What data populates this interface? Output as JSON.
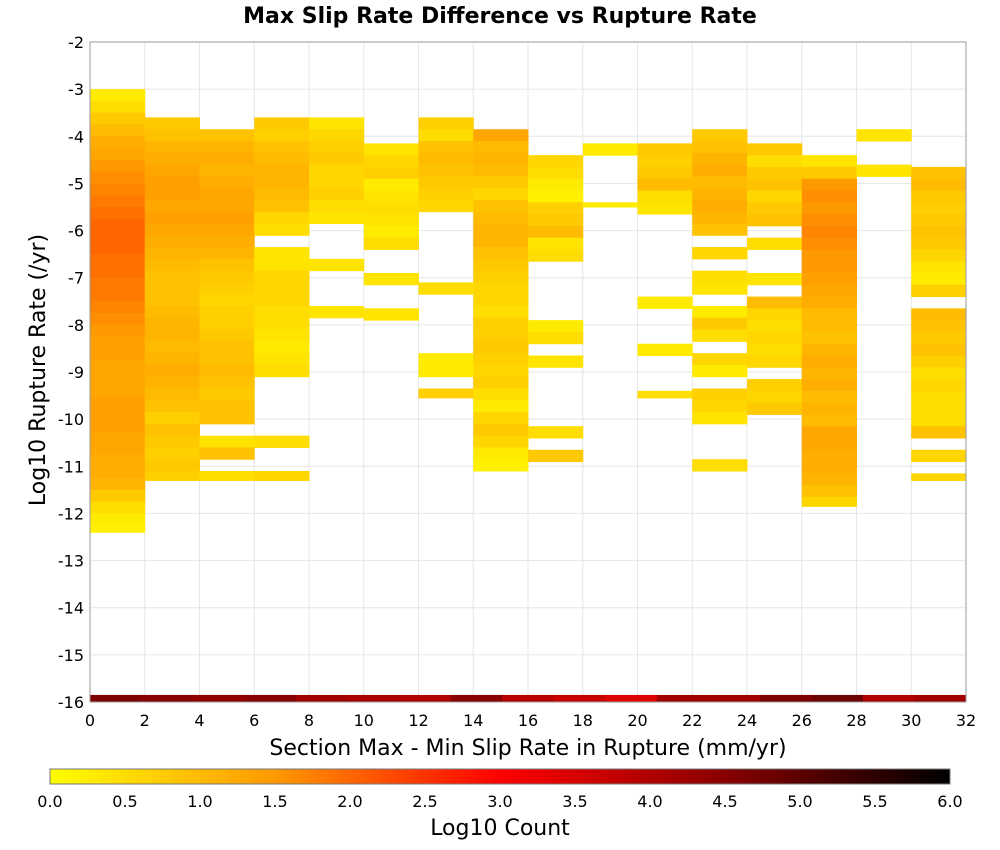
{
  "chart_data": {
    "type": "heatmap",
    "title": "Max Slip Rate Difference vs Rupture Rate",
    "xlabel": "Section Max - Min Slip Rate in Rupture (mm/yr)",
    "ylabel": "Log10 Rupture Rate (/yr)",
    "xlim": [
      0,
      32
    ],
    "ylim": [
      -16,
      -2
    ],
    "x_ticks": [
      "0",
      "2",
      "4",
      "6",
      "8",
      "10",
      "12",
      "14",
      "16",
      "18",
      "20",
      "22",
      "24",
      "26",
      "28",
      "30",
      "32"
    ],
    "y_ticks": [
      "-2",
      "-3",
      "-4",
      "-5",
      "-6",
      "-7",
      "-8",
      "-9",
      "-10",
      "-11",
      "-12",
      "-13",
      "-14",
      "-15",
      "-16"
    ],
    "grid": true,
    "x_bin_width": 2,
    "y_bin_height": 0.25,
    "colorbar": {
      "label": "Log10 Count",
      "min": 0,
      "max": 6,
      "ticks": [
        "0.0",
        "0.5",
        "1.0",
        "1.5",
        "2.0",
        "2.5",
        "3.0",
        "3.5",
        "4.0",
        "4.5",
        "5.0",
        "5.5",
        "6.0"
      ],
      "stops": [
        {
          "v": 0.0,
          "c": "#ffff00"
        },
        {
          "v": 1.5,
          "c": "#ff9900"
        },
        {
          "v": 3.0,
          "c": "#ff0000"
        },
        {
          "v": 4.5,
          "c": "#880000"
        },
        {
          "v": 6.0,
          "c": "#000000"
        }
      ]
    },
    "marginal_row": {
      "y_range": [
        -16,
        -15.85
      ],
      "values": [
        4.6,
        4.5,
        4.4,
        4.5,
        4.2,
        4.1,
        4.0,
        4.5,
        3.9,
        3.7,
        3.4,
        4.2,
        4.2,
        4.6,
        4.8,
        4.0,
        4.2
      ]
    },
    "series": [
      {
        "x0": 0,
        "x1": 2,
        "y0": -12.4,
        "y1": -3.0,
        "values": [
          0.3,
          0.5,
          0.8,
          1.0,
          1.2,
          1.3,
          1.5,
          1.6,
          1.7,
          1.8,
          1.9,
          2.0,
          2.0,
          2.0,
          1.9,
          1.9,
          1.8,
          1.8,
          1.7,
          1.6,
          1.5,
          1.4,
          1.4,
          1.3,
          1.3,
          1.3,
          1.4,
          1.4,
          1.4,
          1.3,
          1.3,
          1.2,
          1.2,
          1.1,
          0.8,
          0.5,
          0.3,
          0.2
        ]
      },
      {
        "x0": 2,
        "x1": 4,
        "y0": -11.3,
        "y1": -3.6,
        "values": [
          0.8,
          0.9,
          1.1,
          1.2,
          1.3,
          1.4,
          1.4,
          1.3,
          1.4,
          1.3,
          1.2,
          1.1,
          1.0,
          0.9,
          0.9,
          0.9,
          1.0,
          1.1,
          1.1,
          1.0,
          1.1,
          1.2,
          1.1,
          1.0,
          0.9,
          0.7,
          0.9,
          0.8,
          0.7,
          0.8,
          0.7
        ]
      },
      {
        "x0": 4,
        "x1": 6,
        "y0": -11.3,
        "y1": -3.85,
        "values": [
          0.9,
          1.1,
          1.2,
          1.1,
          1.2,
          1.3,
          1.3,
          1.4,
          1.3,
          1.2,
          1.1,
          0.9,
          0.8,
          0.7,
          0.6,
          0.7,
          0.7,
          0.8,
          0.9,
          0.9,
          1.0,
          0.9,
          0.8,
          0.9,
          0.9,
          null,
          0.4,
          0.9,
          null,
          0.5
        ]
      },
      {
        "x0": 6,
        "x1": 8,
        "y0": -11.3,
        "y1": -3.6,
        "values": [
          0.8,
          0.7,
          0.9,
          1.0,
          1.1,
          1.1,
          1.0,
          0.9,
          0.6,
          0.5,
          null,
          0.4,
          0.4,
          0.6,
          0.6,
          0.6,
          0.5,
          0.5,
          0.4,
          0.3,
          0.4,
          0.5,
          null,
          null,
          null,
          null,
          null,
          0.5,
          null,
          null,
          0.6
        ]
      },
      {
        "x0": 8,
        "x1": 10,
        "y0": -8.0,
        "y1": -3.6,
        "values": [
          0.4,
          0.6,
          0.7,
          0.8,
          0.6,
          0.6,
          0.7,
          0.5,
          0.4,
          null,
          null,
          null,
          0.4,
          null,
          null,
          null,
          0.4
        ]
      },
      {
        "x0": 10,
        "x1": 12,
        "y0": -8.1,
        "y1": -4.15,
        "values": [
          0.4,
          0.6,
          0.7,
          0.3,
          0.4,
          0.5,
          0.4,
          0.3,
          0.5,
          null,
          null,
          0.4,
          null,
          null,
          0.4
        ]
      },
      {
        "x0": 12,
        "x1": 14,
        "y0": -9.55,
        "y1": -3.6,
        "values": [
          0.7,
          0.5,
          0.9,
          1.0,
          0.9,
          0.8,
          0.7,
          0.6,
          null,
          null,
          null,
          null,
          null,
          null,
          0.5,
          null,
          null,
          null,
          null,
          null,
          0.3,
          0.3,
          null,
          0.7
        ]
      },
      {
        "x0": 14,
        "x1": 16,
        "y0": -11.55,
        "y1": -3.85,
        "values": [
          1.3,
          1.0,
          1.1,
          1.0,
          0.8,
          0.6,
          0.9,
          1.0,
          1.1,
          1.1,
          0.9,
          0.8,
          0.7,
          0.6,
          0.6,
          0.5,
          0.7,
          0.7,
          0.8,
          0.7,
          0.6,
          0.7,
          0.5,
          0.3,
          0.6,
          0.8,
          0.6,
          0.3,
          0.2
        ]
      },
      {
        "x0": 16,
        "x1": 18,
        "y0": -10.9,
        "y1": -4.4,
        "values": [
          0.6,
          0.5,
          0.3,
          0.2,
          0.7,
          0.8,
          1.0,
          0.4,
          0.5,
          null,
          null,
          null,
          null,
          null,
          0.3,
          0.5,
          null,
          0.4,
          null,
          null,
          null,
          null,
          null,
          0.5,
          null,
          0.8
        ]
      },
      {
        "x0": 18,
        "x1": 20,
        "y0": -5.5,
        "y1": -4.15,
        "values": [
          0.3,
          null,
          null,
          null,
          null,
          0.3
        ]
      },
      {
        "x0": 20,
        "x1": 22,
        "y0": -9.55,
        "y1": -4.15,
        "values": [
          0.8,
          0.7,
          0.8,
          1.0,
          0.5,
          0.4,
          null,
          null,
          null,
          null,
          null,
          null,
          null,
          0.3,
          null,
          null,
          null,
          0.3,
          null,
          null,
          null,
          0.5
        ]
      },
      {
        "x0": 22,
        "x1": 24,
        "y0": -11.55,
        "y1": -3.85,
        "values": [
          0.8,
          0.9,
          1.1,
          1.2,
          1.0,
          1.1,
          1.2,
          1.1,
          0.9,
          null,
          0.6,
          null,
          0.5,
          0.4,
          null,
          0.3,
          0.8,
          0.5,
          null,
          0.6,
          0.3,
          null,
          0.7,
          0.6,
          0.4,
          null,
          null,
          null,
          0.5
        ]
      },
      {
        "x0": 24,
        "x1": 26,
        "y0": -10.1,
        "y1": -4.15,
        "values": [
          0.8,
          0.5,
          0.8,
          0.9,
          0.6,
          0.8,
          0.9,
          null,
          0.5,
          null,
          null,
          0.4,
          null,
          1.0,
          0.6,
          0.5,
          0.6,
          0.5,
          0.6,
          null,
          0.7,
          0.6,
          0.8,
          null
        ]
      },
      {
        "x0": 26,
        "x1": 28,
        "y0": -11.85,
        "y1": -4.4,
        "values": [
          0.4,
          0.8,
          1.5,
          1.6,
          1.5,
          1.6,
          1.7,
          1.6,
          1.5,
          1.5,
          1.4,
          1.3,
          1.2,
          1.0,
          1.0,
          0.9,
          1.1,
          1.2,
          1.1,
          1.2,
          1.0,
          1.1,
          1.0,
          1.3,
          1.3,
          1.2,
          1.2,
          1.1,
          0.9,
          0.6
        ]
      },
      {
        "x0": 28,
        "x1": 30,
        "y0": -4.9,
        "y1": -3.85,
        "values": [
          0.4,
          null,
          null,
          0.4
        ]
      },
      {
        "x0": 30,
        "x1": 32,
        "y0": -11.3,
        "y1": -4.65,
        "values": [
          0.9,
          1.0,
          0.8,
          0.7,
          0.8,
          0.9,
          0.8,
          0.6,
          0.4,
          0.3,
          0.7,
          null,
          1.0,
          0.9,
          0.8,
          0.9,
          0.7,
          0.5,
          0.6,
          0.5,
          0.5,
          0.5,
          0.9,
          null,
          0.6,
          null,
          0.6
        ]
      }
    ]
  }
}
